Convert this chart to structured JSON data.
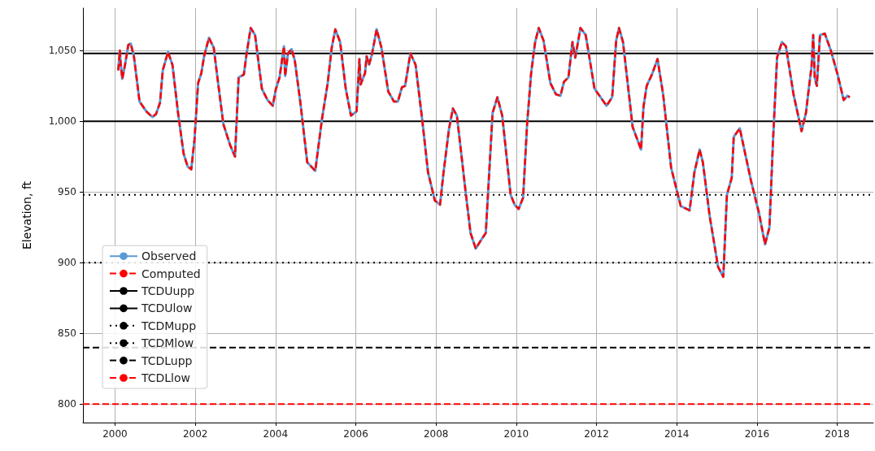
{
  "chart_data": {
    "type": "line",
    "ylabel": "Elevation, ft",
    "x": [
      2000.08,
      2000.12,
      2000.14,
      2000.18,
      2000.25,
      2000.33,
      2000.39,
      2000.47,
      2000.61,
      2000.78,
      2000.93,
      2001.02,
      2001.12,
      2001.19,
      2001.32,
      2001.43,
      2001.57,
      2001.71,
      2001.81,
      2001.9,
      2001.98,
      2002.07,
      2002.15,
      2002.22,
      2002.34,
      2002.46,
      2002.56,
      2002.7,
      2002.87,
      2002.99,
      2003.08,
      2003.21,
      2003.28,
      2003.38,
      2003.49,
      2003.66,
      2003.8,
      2003.93,
      2004.01,
      2004.1,
      2004.21,
      2004.24,
      2004.31,
      2004.4,
      2004.48,
      2004.62,
      2004.79,
      2004.99,
      2005.16,
      2005.3,
      2005.4,
      2005.49,
      2005.61,
      2005.75,
      2005.88,
      2006.02,
      2006.09,
      2006.12,
      2006.23,
      2006.27,
      2006.33,
      2006.4,
      2006.52,
      2006.64,
      2006.81,
      2006.95,
      2007.05,
      2007.15,
      2007.23,
      2007.36,
      2007.49,
      2007.66,
      2007.8,
      2007.97,
      2008.1,
      2008.18,
      2008.32,
      2008.42,
      2008.52,
      2008.73,
      2008.86,
      2008.99,
      2009.1,
      2009.24,
      2009.34,
      2009.41,
      2009.53,
      2009.65,
      2009.86,
      2009.96,
      2010.06,
      2010.17,
      2010.27,
      2010.37,
      2010.47,
      2010.56,
      2010.68,
      2010.85,
      2010.99,
      2011.1,
      2011.19,
      2011.3,
      2011.4,
      2011.47,
      2011.6,
      2011.73,
      2011.95,
      2012.15,
      2012.25,
      2012.39,
      2012.49,
      2012.56,
      2012.66,
      2012.9,
      2013.11,
      2013.17,
      2013.25,
      2013.38,
      2013.52,
      2013.66,
      2013.86,
      2014.1,
      2014.32,
      2014.44,
      2014.57,
      2014.65,
      2014.82,
      2015.03,
      2015.16,
      2015.25,
      2015.37,
      2015.42,
      2015.57,
      2015.85,
      2016.05,
      2016.2,
      2016.31,
      2016.4,
      2016.5,
      2016.62,
      2016.72,
      2016.91,
      2017.11,
      2017.22,
      2017.29,
      2017.36,
      2017.4,
      2017.44,
      2017.49,
      2017.57,
      2017.69,
      2017.84,
      2018.01,
      2018.16,
      2018.25,
      2018.31
    ],
    "series": [
      {
        "name": "Observed",
        "color": "#5b9bd5",
        "line_style": "solid",
        "values": [
          1036,
          1050,
          1041,
          1030,
          1040,
          1054,
          1055,
          1046,
          1014,
          1007,
          1003,
          1005,
          1013,
          1036,
          1049,
          1040,
          1006,
          977,
          968,
          966,
          987,
          1027,
          1034,
          1046,
          1059,
          1052,
          1029,
          998,
          983,
          975,
          1031,
          1033,
          1048,
          1066,
          1061,
          1023,
          1015,
          1011,
          1023,
          1031,
          1053,
          1032,
          1048,
          1051,
          1043,
          1013,
          971,
          965,
          1002,
          1027,
          1052,
          1065,
          1056,
          1023,
          1004,
          1007,
          1044,
          1026,
          1034,
          1046,
          1040,
          1047,
          1065,
          1052,
          1021,
          1014,
          1014,
          1024,
          1025,
          1048,
          1040,
          1000,
          964,
          944,
          941,
          962,
          994,
          1009,
          1004,
          952,
          921,
          910,
          915,
          921,
          971,
          1006,
          1017,
          1004,
          948,
          941,
          938,
          946,
          998,
          1034,
          1056,
          1066,
          1057,
          1027,
          1019,
          1018,
          1028,
          1031,
          1056,
          1045,
          1066,
          1061,
          1023,
          1015,
          1011,
          1017,
          1057,
          1066,
          1056,
          996,
          980,
          1010,
          1025,
          1033,
          1044,
          1019,
          967,
          940,
          937,
          964,
          980,
          971,
          933,
          897,
          890,
          948,
          960,
          989,
          995,
          958,
          935,
          913,
          925,
          987,
          1045,
          1056,
          1053,
          1019,
          993,
          1006,
          1023,
          1039,
          1061,
          1031,
          1025,
          1061,
          1062,
          1050,
          1033,
          1015,
          1018,
          1017
        ]
      },
      {
        "name": "Computed",
        "color": "#ff0000",
        "line_style": "dashed",
        "values": [
          1036,
          1050,
          1041,
          1030,
          1040,
          1054,
          1055,
          1046,
          1014,
          1007,
          1003,
          1005,
          1013,
          1036,
          1049,
          1040,
          1006,
          977,
          968,
          966,
          987,
          1027,
          1034,
          1046,
          1059,
          1052,
          1029,
          998,
          983,
          975,
          1031,
          1033,
          1048,
          1066,
          1061,
          1023,
          1015,
          1011,
          1023,
          1031,
          1053,
          1032,
          1048,
          1051,
          1043,
          1013,
          971,
          965,
          1002,
          1027,
          1052,
          1065,
          1056,
          1023,
          1004,
          1007,
          1044,
          1026,
          1034,
          1046,
          1040,
          1047,
          1065,
          1052,
          1021,
          1014,
          1014,
          1024,
          1025,
          1048,
          1040,
          1000,
          964,
          944,
          941,
          962,
          994,
          1009,
          1004,
          952,
          921,
          910,
          915,
          921,
          971,
          1006,
          1017,
          1004,
          948,
          941,
          938,
          946,
          998,
          1034,
          1056,
          1066,
          1057,
          1027,
          1019,
          1018,
          1028,
          1031,
          1056,
          1045,
          1066,
          1061,
          1023,
          1015,
          1011,
          1017,
          1057,
          1066,
          1056,
          996,
          980,
          1010,
          1025,
          1033,
          1044,
          1019,
          967,
          940,
          937,
          964,
          980,
          971,
          933,
          897,
          890,
          948,
          960,
          989,
          995,
          958,
          935,
          913,
          925,
          987,
          1045,
          1056,
          1053,
          1019,
          993,
          1006,
          1023,
          1039,
          1061,
          1031,
          1025,
          1061,
          1062,
          1050,
          1033,
          1015,
          1018,
          1017
        ]
      }
    ],
    "ref_lines": [
      {
        "axis": "y",
        "value": 1048,
        "label": "TCDUupp",
        "color": "#000000",
        "line_style": "solid"
      },
      {
        "axis": "y",
        "value": 1000,
        "label": "TCDUlow",
        "color": "#000000",
        "line_style": "solid"
      },
      {
        "axis": "y",
        "value": 948,
        "label": "TCDMupp",
        "color": "#000000",
        "line_style": "dotted"
      },
      {
        "axis": "y",
        "value": 900,
        "label": "TCDMlow",
        "color": "#000000",
        "line_style": "dotted"
      },
      {
        "axis": "y",
        "value": 840,
        "label": "TCDLupp",
        "color": "#000000",
        "line_style": "dashed"
      },
      {
        "axis": "y",
        "value": 800,
        "label": "TCDLlow",
        "color": "#ff0000",
        "line_style": "dashed"
      }
    ],
    "xlim": [
      1999.2,
      2018.9
    ],
    "xticks": [
      2000,
      2002,
      2004,
      2006,
      2008,
      2010,
      2012,
      2014,
      2016,
      2018
    ],
    "ylim": [
      787,
      1080
    ],
    "yticks": [
      800,
      850,
      900,
      950,
      {
        "value": 1000,
        "label": "1,000"
      },
      {
        "value": 1050,
        "label": "1,050"
      }
    ],
    "grid": true,
    "legend": "bottom left",
    "marker": "none"
  }
}
